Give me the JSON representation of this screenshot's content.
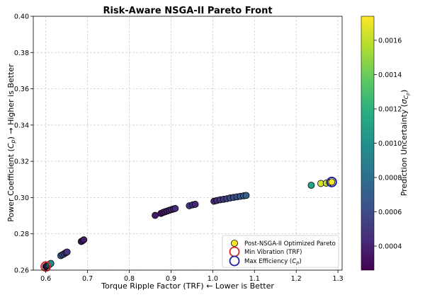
{
  "chart_data": {
    "type": "scatter",
    "title": "Risk-Aware NSGA-II Pareto Front",
    "xlabel_parts": [
      "Torque Ripple Factor (TRF) ",
      " Lower is Better"
    ],
    "ylabel_parts": [
      "Power Coefficient (",
      ") ",
      " Higher is Better"
    ],
    "xlim": [
      0.57,
      1.31
    ],
    "ylim": [
      0.26,
      0.4
    ],
    "xticks": [
      "0.6",
      "0.7",
      "0.8",
      "0.9",
      "1.0",
      "1.1",
      "1.2",
      "1.3"
    ],
    "yticks": [
      "0.26",
      "0.28",
      "0.30",
      "0.32",
      "0.34",
      "0.36",
      "0.38",
      "0.40"
    ],
    "grid": true,
    "colorbar": {
      "label_prefix": "Prediction Uncertainty (",
      "label_suffix": ")",
      "range": [
        0.00026,
        0.00174
      ],
      "ticks": [
        "0.0004",
        "0.0006",
        "0.0008",
        "0.0010",
        "0.0012",
        "0.0014",
        "0.0016"
      ],
      "colormap": "viridis"
    },
    "series": [
      {
        "name": "Post-NSGA-II Optimized Pareto",
        "points": [
          {
            "x": 0.6,
            "y": 0.262,
            "u": 0.0003
          },
          {
            "x": 0.603,
            "y": 0.2625,
            "u": 0.00034
          },
          {
            "x": 0.607,
            "y": 0.2627,
            "u": 0.00078
          },
          {
            "x": 0.609,
            "y": 0.2632,
            "u": 0.0009
          },
          {
            "x": 0.612,
            "y": 0.2637,
            "u": 0.00095
          },
          {
            "x": 0.636,
            "y": 0.268,
            "u": 0.00075
          },
          {
            "x": 0.64,
            "y": 0.2685,
            "u": 0.00066
          },
          {
            "x": 0.644,
            "y": 0.269,
            "u": 0.0006
          },
          {
            "x": 0.648,
            "y": 0.2696,
            "u": 0.00052
          },
          {
            "x": 0.651,
            "y": 0.27,
            "u": 0.00048
          },
          {
            "x": 0.685,
            "y": 0.2758,
            "u": 0.00042
          },
          {
            "x": 0.688,
            "y": 0.2762,
            "u": 0.00039
          },
          {
            "x": 0.691,
            "y": 0.2767,
            "u": 0.00036
          },
          {
            "x": 0.862,
            "y": 0.2902,
            "u": 0.00036
          },
          {
            "x": 0.876,
            "y": 0.2913,
            "u": 0.00033
          },
          {
            "x": 0.881,
            "y": 0.2918,
            "u": 0.00035
          },
          {
            "x": 0.886,
            "y": 0.2922,
            "u": 0.00036
          },
          {
            "x": 0.891,
            "y": 0.2926,
            "u": 0.00038
          },
          {
            "x": 0.896,
            "y": 0.293,
            "u": 0.0004
          },
          {
            "x": 0.901,
            "y": 0.2934,
            "u": 0.00042
          },
          {
            "x": 0.906,
            "y": 0.2937,
            "u": 0.00043
          },
          {
            "x": 0.91,
            "y": 0.294,
            "u": 0.00045
          },
          {
            "x": 0.944,
            "y": 0.2955,
            "u": 0.0005
          },
          {
            "x": 0.952,
            "y": 0.296,
            "u": 0.00046
          },
          {
            "x": 0.958,
            "y": 0.2963,
            "u": 0.00043
          },
          {
            "x": 1.003,
            "y": 0.298,
            "u": 0.00042
          },
          {
            "x": 1.01,
            "y": 0.2984,
            "u": 0.00045
          },
          {
            "x": 1.018,
            "y": 0.2988,
            "u": 0.00048
          },
          {
            "x": 1.026,
            "y": 0.2991,
            "u": 0.00051
          },
          {
            "x": 1.034,
            "y": 0.2994,
            "u": 0.00054
          },
          {
            "x": 1.042,
            "y": 0.2998,
            "u": 0.00057
          },
          {
            "x": 1.05,
            "y": 0.3001,
            "u": 0.0006
          },
          {
            "x": 1.058,
            "y": 0.3004,
            "u": 0.00063
          },
          {
            "x": 1.066,
            "y": 0.3007,
            "u": 0.00066
          },
          {
            "x": 1.074,
            "y": 0.301,
            "u": 0.00069
          },
          {
            "x": 1.08,
            "y": 0.3012,
            "u": 0.00072
          },
          {
            "x": 1.236,
            "y": 0.3068,
            "u": 0.0011
          },
          {
            "x": 1.259,
            "y": 0.3078,
            "u": 0.00165
          },
          {
            "x": 1.272,
            "y": 0.308,
            "u": 0.0016
          },
          {
            "x": 1.28,
            "y": 0.3083,
            "u": 0.00168
          },
          {
            "x": 1.285,
            "y": 0.3086,
            "u": 0.00172
          }
        ]
      },
      {
        "name": "Min Vibration (TRF)",
        "points": [
          {
            "x": 0.6,
            "y": 0.262
          }
        ],
        "edge_color": "#d62728"
      },
      {
        "name": "Max Efficiency",
        "points": [
          {
            "x": 1.285,
            "y": 0.3086
          }
        ],
        "edge_color": "#1f1f9f"
      }
    ],
    "legend": {
      "placement": "lower-right",
      "entries": [
        {
          "label": "Post-NSGA-II Optimized Pareto",
          "marker": "filled",
          "color": "#fde725"
        },
        {
          "label": "Min Vibration (TRF)",
          "marker": "ring",
          "color": "#d62728"
        },
        {
          "label": "Max Efficiency (",
          "label_suffix": ")",
          "marker": "ring",
          "color": "#1f1f9f"
        }
      ]
    }
  }
}
